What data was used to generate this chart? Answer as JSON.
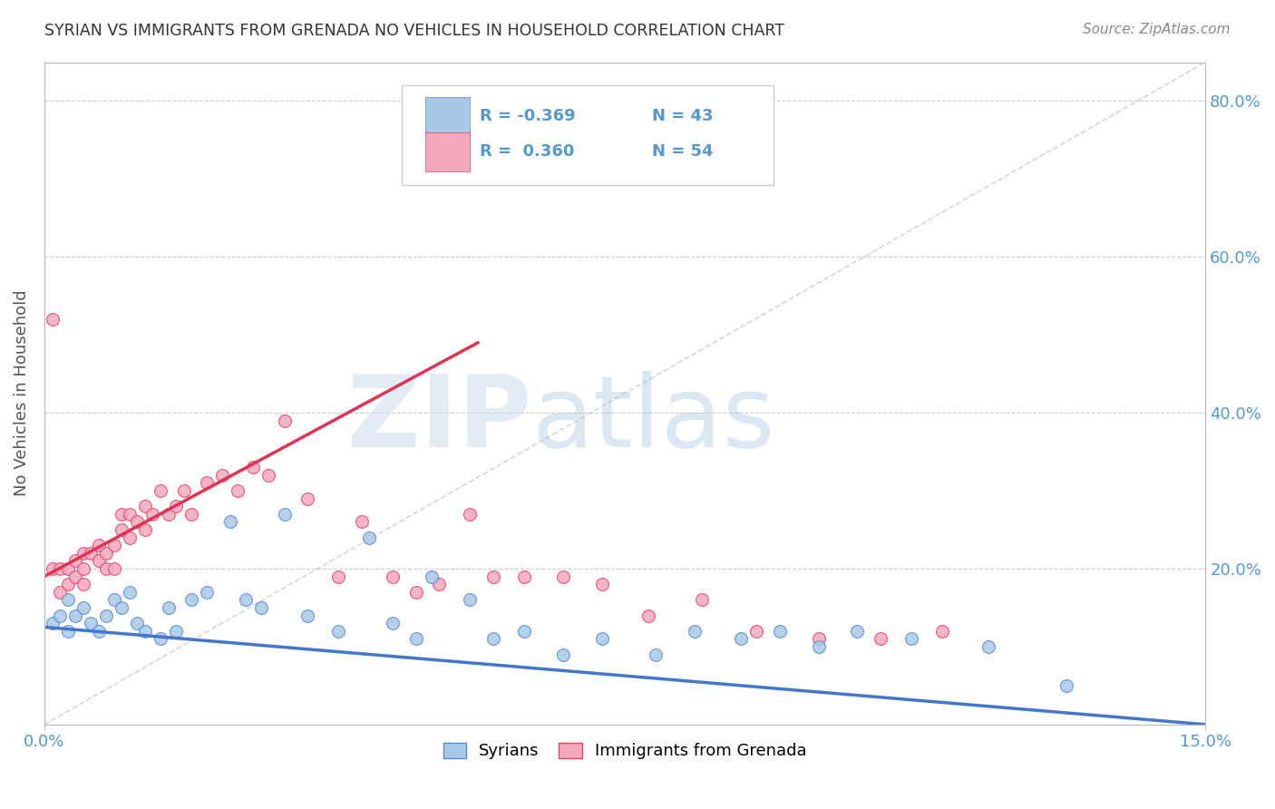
{
  "title": "SYRIAN VS IMMIGRANTS FROM GRENADA NO VEHICLES IN HOUSEHOLD CORRELATION CHART",
  "source": "Source: ZipAtlas.com",
  "ylabel": "No Vehicles in Household",
  "xmin": 0.0,
  "xmax": 0.15,
  "ymin": 0.0,
  "ymax": 0.85,
  "ytick_vals": [
    0.0,
    0.2,
    0.4,
    0.6,
    0.8
  ],
  "ytick_labels": [
    "",
    "20.0%",
    "40.0%",
    "60.0%",
    "80.0%"
  ],
  "color_syrian": "#a8c8e8",
  "color_grenada": "#f4a8bc",
  "color_syrian_edge": "#5588cc",
  "color_grenada_edge": "#dd4466",
  "color_syrian_line": "#4477cc",
  "color_grenada_line": "#dd3355",
  "color_diagonal": "#cccccc",
  "title_color": "#333333",
  "source_color": "#888888",
  "axis_color": "#bbbbbb",
  "label_color": "#5599cc",
  "background_color": "#ffffff",
  "syrian_line_x0": 0.0,
  "syrian_line_x1": 0.15,
  "syrian_line_y0": 0.125,
  "syrian_line_y1": 0.0,
  "grenada_line_x0": 0.0,
  "grenada_line_x1": 0.056,
  "grenada_line_y0": 0.19,
  "grenada_line_y1": 0.49,
  "syrians_x": [
    0.001,
    0.002,
    0.003,
    0.003,
    0.004,
    0.005,
    0.006,
    0.007,
    0.008,
    0.009,
    0.01,
    0.011,
    0.012,
    0.013,
    0.015,
    0.016,
    0.017,
    0.019,
    0.021,
    0.024,
    0.026,
    0.028,
    0.031,
    0.034,
    0.038,
    0.042,
    0.045,
    0.048,
    0.05,
    0.055,
    0.058,
    0.062,
    0.067,
    0.072,
    0.079,
    0.084,
    0.09,
    0.095,
    0.1,
    0.105,
    0.112,
    0.122,
    0.132
  ],
  "syrians_y": [
    0.13,
    0.14,
    0.12,
    0.16,
    0.14,
    0.15,
    0.13,
    0.12,
    0.14,
    0.16,
    0.15,
    0.17,
    0.13,
    0.12,
    0.11,
    0.15,
    0.12,
    0.16,
    0.17,
    0.26,
    0.16,
    0.15,
    0.27,
    0.14,
    0.12,
    0.24,
    0.13,
    0.11,
    0.19,
    0.16,
    0.11,
    0.12,
    0.09,
    0.11,
    0.09,
    0.12,
    0.11,
    0.12,
    0.1,
    0.12,
    0.11,
    0.1,
    0.05
  ],
  "grenada_x": [
    0.001,
    0.001,
    0.002,
    0.002,
    0.003,
    0.003,
    0.004,
    0.004,
    0.005,
    0.005,
    0.005,
    0.006,
    0.007,
    0.007,
    0.008,
    0.008,
    0.009,
    0.009,
    0.01,
    0.01,
    0.011,
    0.011,
    0.012,
    0.013,
    0.013,
    0.014,
    0.015,
    0.016,
    0.017,
    0.018,
    0.019,
    0.021,
    0.023,
    0.025,
    0.027,
    0.029,
    0.031,
    0.034,
    0.038,
    0.041,
    0.045,
    0.048,
    0.051,
    0.055,
    0.058,
    0.062,
    0.067,
    0.072,
    0.078,
    0.085,
    0.092,
    0.1,
    0.108,
    0.116
  ],
  "grenada_y": [
    0.52,
    0.2,
    0.2,
    0.17,
    0.2,
    0.18,
    0.21,
    0.19,
    0.22,
    0.2,
    0.18,
    0.22,
    0.23,
    0.21,
    0.22,
    0.2,
    0.23,
    0.2,
    0.27,
    0.25,
    0.27,
    0.24,
    0.26,
    0.28,
    0.25,
    0.27,
    0.3,
    0.27,
    0.28,
    0.3,
    0.27,
    0.31,
    0.32,
    0.3,
    0.33,
    0.32,
    0.39,
    0.29,
    0.19,
    0.26,
    0.19,
    0.17,
    0.18,
    0.27,
    0.19,
    0.19,
    0.19,
    0.18,
    0.14,
    0.16,
    0.12,
    0.11,
    0.11,
    0.12
  ]
}
